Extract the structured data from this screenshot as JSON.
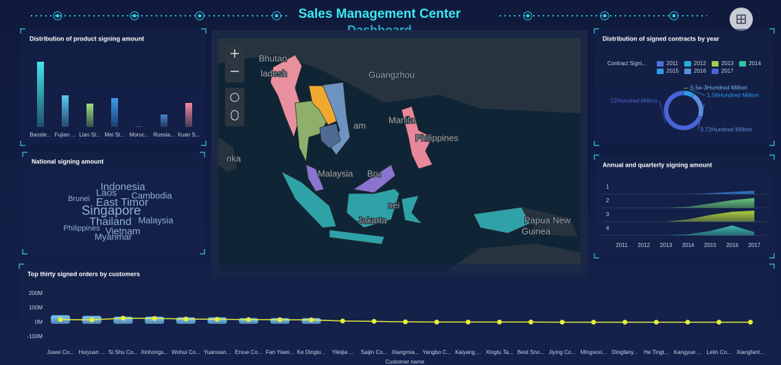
{
  "header": {
    "title": "Sales Management Center",
    "subtitle": "Dashboard"
  },
  "map": {
    "labels": [
      "Bhutan",
      "ladesh",
      "Guangzhou",
      "am",
      "Manila",
      "Philippines",
      "nka",
      "Malaysia",
      "Bru",
      "nei",
      "Jakarta",
      "Papua New",
      "Guinea"
    ]
  },
  "chart_data": [
    {
      "type": "bar",
      "title": "Distribution of product signing amount",
      "categories": [
        "Baoste...",
        "Fujian ...",
        "Lian St...",
        "Mei St...",
        "Moroc...",
        "Russia...",
        "Xuan S..."
      ],
      "values": [
        95,
        46,
        34,
        42,
        1,
        18,
        35
      ],
      "colors": [
        "#43e6e8",
        "#5cc8f0",
        "#9be27a",
        "#3d9cf0",
        "#3f6fd8",
        "#4a86c8",
        "#f08a9c"
      ]
    },
    {
      "type": "wordcloud",
      "title": "National signing amount",
      "categories": [
        "Indonesia",
        "Laos",
        "Cambodia",
        "Brunei",
        "East Timor",
        "Singapore",
        "Thailand",
        "Malaysia",
        "Philippines",
        "Vietnam",
        "Myanmar"
      ],
      "values": [
        15,
        14,
        13,
        11,
        16,
        19,
        16,
        13,
        11,
        14,
        13
      ],
      "color": "#8fb0d9"
    },
    {
      "type": "pie",
      "title": "Distribution of signed contracts by year",
      "name": "Contract Signi...",
      "categories": [
        "2011",
        "2012",
        "2013",
        "2014",
        "2015",
        "2016",
        "2017"
      ],
      "values": [
        null,
        null,
        0.0055,
        null,
        1.56,
        3.72,
        12
      ],
      "value_labels": [
        null,
        null,
        "5.5e-3Hundred Million",
        null,
        "1.56Hundred Million",
        "3.72Hundred Million",
        "12Hundred Million"
      ],
      "colors": [
        "#4d6fd8",
        "#25b0d8",
        "#9bd14b",
        "#2ec6a0",
        "#2b9be8",
        "#5b8fe0",
        "#4a64d8"
      ]
    },
    {
      "type": "ridgeline",
      "title": "Annual and quarterly signing amount",
      "categories": [
        "2011",
        "2012",
        "2013",
        "2014",
        "2015",
        "2016",
        "2017"
      ],
      "series": [
        {
          "name": "1",
          "color": "#3a8ee8",
          "values": [
            0,
            0,
            0,
            0,
            0.1,
            0.2,
            0.3
          ]
        },
        {
          "name": "2",
          "color": "#6fd07a",
          "values": [
            0,
            0,
            0,
            0.1,
            0.4,
            0.7,
            0.9
          ]
        },
        {
          "name": "3",
          "color": "#b8d83a",
          "values": [
            0,
            0,
            0,
            0.2,
            0.6,
            0.9,
            1
          ]
        },
        {
          "name": "4",
          "color": "#3fc0b0",
          "values": [
            0,
            0,
            0,
            0.1,
            0.4,
            0.9,
            0.3
          ]
        }
      ]
    },
    {
      "type": "combo",
      "title": "Top thirty signed orders by customers",
      "xlabel": "Customer name",
      "categories": [
        "Juwei Co...",
        "Huiyuan ...",
        "Si Shu Co...",
        "Xinhongs...",
        "Wohui Co...",
        "Yuanxian...",
        "Erxue Co...",
        "Fan Yiwei...",
        "Ke Dinglu...",
        "Yileijia ...",
        "Saijin Co...",
        "Xiangmia...",
        "Yangbo C...",
        "Kaiyang ...",
        "Xingtu Ta...",
        "Best Sno...",
        "Jiying Co...",
        "Mingsoxi...",
        "Dingfany...",
        "He Tingt...",
        "Kangyue ...",
        "Lelin Co...",
        "Xiangfant..."
      ],
      "series": [
        {
          "type": "bar",
          "color": "#7cc8f5",
          "values": [
            50,
            45,
            40,
            40,
            35,
            35,
            30,
            30,
            30,
            0,
            0,
            0,
            0,
            0,
            0,
            0,
            0,
            0,
            0,
            0,
            0,
            0,
            0
          ]
        },
        {
          "type": "line",
          "color": "#e6f03a",
          "values": [
            20,
            18,
            30,
            28,
            24,
            22,
            20,
            19,
            18,
            10,
            8,
            4,
            3,
            3,
            3,
            3,
            2,
            2,
            2,
            2,
            2,
            2,
            2
          ]
        }
      ],
      "ylim": [
        -100,
        200
      ],
      "yticks": [
        {
          "value": -100,
          "label": "-100M"
        },
        {
          "value": 0,
          "label": "0M"
        },
        {
          "value": 100,
          "label": "100M"
        },
        {
          "value": 200,
          "label": "200M"
        }
      ]
    }
  ]
}
